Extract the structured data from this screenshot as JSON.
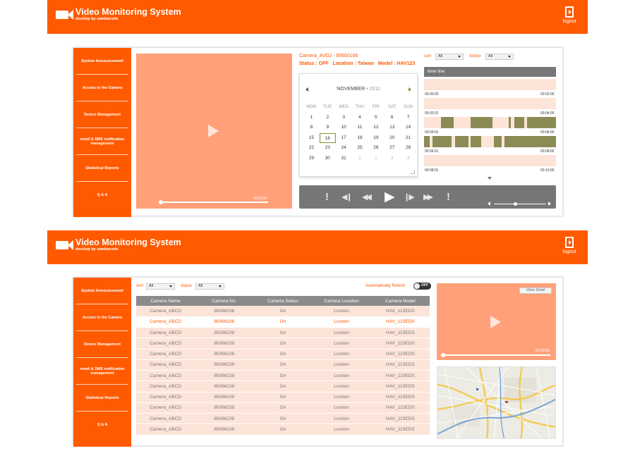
{
  "app": {
    "title": "Video Monitoring System",
    "subtitle": "develop by sambacode",
    "logout_label": "logout"
  },
  "sidebar": {
    "items": [
      {
        "label": "System Announcement"
      },
      {
        "label": "Access to the Camera"
      },
      {
        "label": "Device Management"
      },
      {
        "label": "email & SMS notification management"
      },
      {
        "label": "Statistical Reports"
      },
      {
        "label": "Q & A"
      }
    ]
  },
  "screen1": {
    "video": {
      "time": "00:00:00",
      "progress": 0.0
    },
    "camera": {
      "name": "Camera_AVDJ - 85600166",
      "status_label": "Status : ",
      "status_value": "OFF",
      "location_label": "Location : ",
      "location_value": "Taiwan",
      "model_label": "Model : ",
      "model_value": "HAV123"
    },
    "calendar": {
      "month": "NOVEMBER",
      "year": "2011",
      "dot": "•",
      "weekdays": [
        "MON",
        "TUE",
        "WED",
        "THU",
        "FRI",
        "SAT",
        "SUN"
      ],
      "days": [
        {
          "d": "1"
        },
        {
          "d": "2"
        },
        {
          "d": "3"
        },
        {
          "d": "4"
        },
        {
          "d": "5"
        },
        {
          "d": "6"
        },
        {
          "d": "7"
        },
        {
          "d": "8"
        },
        {
          "d": "9"
        },
        {
          "d": "10"
        },
        {
          "d": "11"
        },
        {
          "d": "12"
        },
        {
          "d": "13"
        },
        {
          "d": "14"
        },
        {
          "d": "15"
        },
        {
          "d": "16",
          "selected": true
        },
        {
          "d": "17"
        },
        {
          "d": "18"
        },
        {
          "d": "19"
        },
        {
          "d": "20"
        },
        {
          "d": "21"
        },
        {
          "d": "22"
        },
        {
          "d": "23"
        },
        {
          "d": "24"
        },
        {
          "d": "25"
        },
        {
          "d": "26"
        },
        {
          "d": "27"
        },
        {
          "d": "28"
        },
        {
          "d": "29"
        },
        {
          "d": "30"
        },
        {
          "d": "31"
        },
        {
          "d": "1",
          "muted": true
        },
        {
          "d": "2",
          "muted": true
        },
        {
          "d": "3",
          "muted": true
        },
        {
          "d": "4",
          "muted": true
        }
      ]
    },
    "filters": {
      "sort_label": "sort",
      "sort_value": "All",
      "action_label": "Action",
      "action_value": "All"
    },
    "timeline": {
      "title": "time line",
      "rows": [
        {
          "start": "00:00:00",
          "end": "00:02:00"
        },
        {
          "start": "00:02:01",
          "end": "00:04:00"
        },
        {
          "start": "00:04:01",
          "end": "00:06:00"
        },
        {
          "start": "00:06:01",
          "end": "00:08:00"
        },
        {
          "start": "00:08:01",
          "end": "00:10:00"
        }
      ]
    },
    "controls": {
      "alert_left": "!",
      "alert_right": "!",
      "prev_frame": "◀❙",
      "rewind": "◀◀",
      "play": "▶",
      "next_frame": "❙▶",
      "fast_forward": "▶▶",
      "volume_level": 0.4
    }
  },
  "screen2": {
    "filters": {
      "sort_label": "sort",
      "sort_value": "All",
      "status_label": "status",
      "status_value": "All"
    },
    "auto_refresh": {
      "label": "Automatically Refesh",
      "state": "OFF"
    },
    "table": {
      "separator": "|",
      "headers": [
        "Camera Name",
        "Camera No.",
        "Camera Status",
        "Camera Location",
        "Camera Model"
      ],
      "rows": [
        [
          "Camera_ABCD",
          "85066238",
          "On",
          "London",
          "HAV_123EDS"
        ],
        [
          "Camera_ABCD",
          "85066238",
          "On",
          "London",
          "HAV_123EDS"
        ],
        [
          "Camera_ABCD",
          "85066238",
          "On",
          "London",
          "HAV_123EDS"
        ],
        [
          "Camera_ABCD",
          "85066238",
          "On",
          "London",
          "HAV_123EDS"
        ],
        [
          "Camera_ABCD",
          "85066238",
          "On",
          "London",
          "HAV_123EDS"
        ],
        [
          "Camera_ABCD",
          "85066238",
          "On",
          "London",
          "HAV_123EDS"
        ],
        [
          "Camera_ABCD",
          "85066238",
          "On",
          "London",
          "HAV_123EDS"
        ],
        [
          "Camera_ABCD",
          "85066238",
          "On",
          "London",
          "HAV_123EDS"
        ],
        [
          "Camera_ABCD",
          "85066238",
          "On",
          "London",
          "HAV_123EDS"
        ],
        [
          "Camera_ABCD",
          "85066238",
          "On",
          "London",
          "HAV_123EDS"
        ],
        [
          "Camera_ABCD",
          "85066238",
          "On",
          "London",
          "HAV_123EDS"
        ],
        [
          "Camera_ABCD",
          "85066238",
          "On",
          "London",
          "HAV_123EDS"
        ]
      ],
      "highlighted_row": 1
    },
    "video": {
      "detail_button": "Video Detail",
      "time": "00:00:00",
      "progress": 0.0
    }
  },
  "colors": {
    "accent": "#ff5a00",
    "video_bg": "#ffa079",
    "row_bg": "#fde4d8",
    "timeline_fill": "#8b8b55",
    "control_bar": "#767676"
  }
}
